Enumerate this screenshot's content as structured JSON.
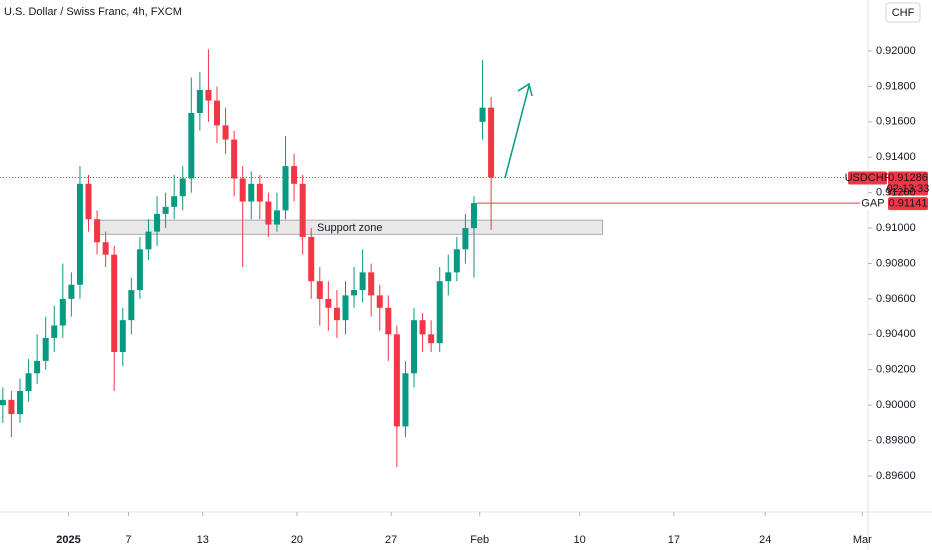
{
  "header": {
    "title": "U.S. Dollar / Swiss Franc, 4h, FXCM",
    "currency": "CHF"
  },
  "chart_data": {
    "type": "candlestick",
    "x": [
      1,
      4,
      7,
      10,
      13,
      16,
      19,
      22,
      25,
      28,
      31,
      34,
      37,
      40,
      43,
      46,
      49,
      52,
      55,
      58,
      61,
      64,
      67,
      70,
      73,
      76,
      79,
      82,
      85,
      88,
      91,
      94,
      97,
      100,
      103,
      106,
      109,
      112,
      115,
      118,
      121,
      124,
      127,
      130,
      133,
      136,
      139,
      142,
      145,
      148,
      151,
      154,
      157,
      160,
      163,
      166,
      169,
      172
    ],
    "open": [
      0.9,
      0.9003,
      0.8995,
      0.9008,
      0.9018,
      0.9025,
      0.9038,
      0.9045,
      0.906,
      0.9068,
      0.9125,
      0.9105,
      0.9092,
      0.9085,
      0.903,
      0.9048,
      0.9065,
      0.9088,
      0.9098,
      0.9108,
      0.9112,
      0.9118,
      0.9128,
      0.9165,
      0.9178,
      0.9172,
      0.9158,
      0.915,
      0.9128,
      0.9115,
      0.9125,
      0.9115,
      0.9102,
      0.911,
      0.9135,
      0.9125,
      0.9095,
      0.907,
      0.906,
      0.9055,
      0.9048,
      0.9062,
      0.9065,
      0.9075,
      0.9062,
      0.9055,
      0.904,
      0.8988,
      0.9018,
      0.9048,
      0.904,
      0.9035,
      0.907,
      0.9075,
      0.9088,
      0.91,
      0.916,
      0.9168
    ],
    "high": [
      0.901,
      0.9008,
      0.9015,
      0.9026,
      0.904,
      0.905,
      0.9056,
      0.908,
      0.9075,
      0.9135,
      0.913,
      0.911,
      0.9098,
      0.909,
      0.9055,
      0.9072,
      0.9095,
      0.9105,
      0.9118,
      0.912,
      0.913,
      0.9135,
      0.9185,
      0.9188,
      0.9201,
      0.918,
      0.9168,
      0.9155,
      0.9135,
      0.9132,
      0.913,
      0.912,
      0.912,
      0.9152,
      0.9142,
      0.913,
      0.91,
      0.9078,
      0.907,
      0.9065,
      0.907,
      0.9078,
      0.9088,
      0.908,
      0.9068,
      0.9062,
      0.9045,
      0.9025,
      0.9055,
      0.9052,
      0.9048,
      0.9078,
      0.9085,
      0.9095,
      0.9108,
      0.9118,
      0.9195,
      0.9174
    ],
    "low": [
      0.899,
      0.8982,
      0.899,
      0.9002,
      0.9012,
      0.902,
      0.903,
      0.9038,
      0.905,
      0.906,
      0.9098,
      0.9085,
      0.9078,
      0.9008,
      0.9022,
      0.904,
      0.906,
      0.9082,
      0.909,
      0.91,
      0.9105,
      0.911,
      0.912,
      0.9155,
      0.916,
      0.9148,
      0.9142,
      0.9118,
      0.9078,
      0.9105,
      0.9105,
      0.9095,
      0.9098,
      0.9105,
      0.9115,
      0.9085,
      0.906,
      0.9045,
      0.9042,
      0.9038,
      0.904,
      0.9055,
      0.9058,
      0.905,
      0.9042,
      0.9025,
      0.8965,
      0.8982,
      0.901,
      0.903,
      0.903,
      0.903,
      0.9062,
      0.907,
      0.908,
      0.9072,
      0.915,
      0.9099
    ],
    "close": [
      0.9003,
      0.8995,
      0.9008,
      0.9018,
      0.9025,
      0.9038,
      0.9045,
      0.906,
      0.9068,
      0.9125,
      0.9105,
      0.9092,
      0.9085,
      0.903,
      0.9048,
      0.9065,
      0.9088,
      0.9098,
      0.9108,
      0.9112,
      0.9118,
      0.9128,
      0.9165,
      0.9178,
      0.9172,
      0.9158,
      0.915,
      0.9128,
      0.9115,
      0.9125,
      0.9115,
      0.9102,
      0.911,
      0.9135,
      0.9125,
      0.9095,
      0.907,
      0.906,
      0.9055,
      0.9048,
      0.9062,
      0.9065,
      0.9075,
      0.9062,
      0.9055,
      0.904,
      0.8988,
      0.9018,
      0.9048,
      0.904,
      0.9035,
      0.907,
      0.9075,
      0.9088,
      0.91,
      0.91141,
      0.9168,
      0.91286
    ],
    "up_color": "#089981",
    "down_color": "#f23645",
    "grid": false,
    "xlim": [
      0,
      304
    ],
    "xticks": [
      {
        "value": 24,
        "label": "2025"
      },
      {
        "value": 45,
        "label": "7"
      },
      {
        "value": 71,
        "label": "13"
      },
      {
        "value": 104,
        "label": "20"
      },
      {
        "value": 137,
        "label": "27"
      },
      {
        "value": 168,
        "label": "Feb"
      },
      {
        "value": 203,
        "label": "10"
      },
      {
        "value": 236,
        "label": "17"
      },
      {
        "value": 268,
        "label": "24"
      },
      {
        "value": 302,
        "label": "Mar"
      }
    ],
    "ylim": [
      0.89408,
      0.92288
    ],
    "yticks": [
      {
        "value": 0.896,
        "label": "0.89600"
      },
      {
        "value": 0.898,
        "label": "0.89800"
      },
      {
        "value": 0.9,
        "label": "0.90000"
      },
      {
        "value": 0.902,
        "label": "0.90200"
      },
      {
        "value": 0.904,
        "label": "0.90400"
      },
      {
        "value": 0.906,
        "label": "0.90600"
      },
      {
        "value": 0.908,
        "label": "0.90800"
      },
      {
        "value": 0.91,
        "label": "0.91000"
      },
      {
        "value": 0.912,
        "label": "0.91200"
      },
      {
        "value": 0.914,
        "label": "0.91400"
      },
      {
        "value": 0.916,
        "label": "0.91600"
      },
      {
        "value": 0.918,
        "label": "0.91800"
      },
      {
        "value": 0.92,
        "label": "0.92000"
      }
    ],
    "last_price": {
      "symbol": "USDCHF",
      "value": 0.91286,
      "countdown": "02:13:33",
      "color": "#f23645"
    },
    "gap": {
      "label": "GAP",
      "value": 0.91141,
      "x_start": 167
    },
    "support_zone": {
      "label": "Support zone",
      "low": 0.90965,
      "high": 0.91045,
      "x_start": 34,
      "x_end": 211
    }
  }
}
